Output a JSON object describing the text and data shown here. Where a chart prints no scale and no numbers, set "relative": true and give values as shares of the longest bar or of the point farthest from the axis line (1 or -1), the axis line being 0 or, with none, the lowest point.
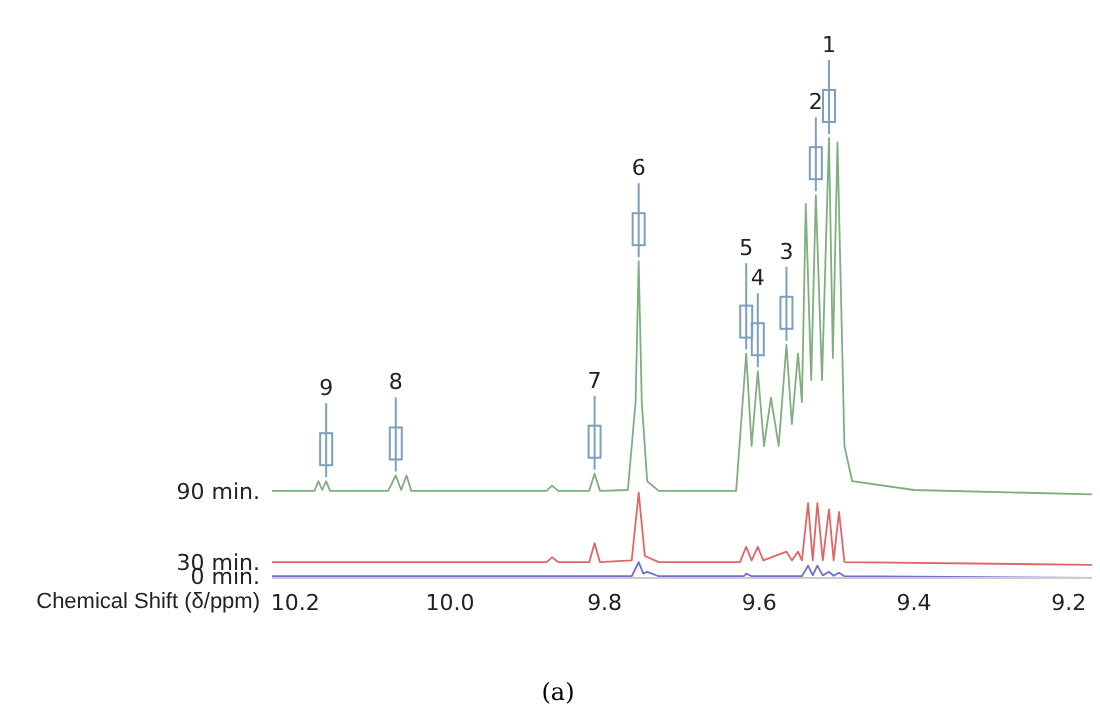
{
  "chart_data": {
    "type": "line",
    "relative": true,
    "xlabel": "Chemical Shift (δ/ppm)",
    "xlim": [
      10.23,
      9.17
    ],
    "xticks": [
      10.2,
      {
        "value": 10,
        "label": "10.0"
      },
      9.8,
      9.6,
      9.4,
      9.2
    ],
    "grid": false,
    "legend": false,
    "marker": "none",
    "line_style": "solid",
    "series": [
      {
        "name": "90 min.",
        "color": "#7fae7f",
        "x": [
          10.23,
          10.175,
          10.17,
          10.165,
          10.16,
          10.155,
          10.08,
          10.07,
          10.063,
          10.056,
          10.05,
          9.875,
          9.868,
          9.86,
          9.82,
          9.813,
          9.806,
          9.77,
          9.76,
          9.756,
          9.752,
          9.745,
          9.73,
          9.63,
          9.617,
          9.61,
          9.602,
          9.594,
          9.585,
          9.575,
          9.565,
          9.558,
          9.55,
          9.545,
          9.54,
          9.533,
          9.527,
          9.519,
          9.51,
          9.505,
          9.499,
          9.49,
          9.48,
          9.4,
          9.17
        ],
        "values": [
          0.198,
          0.198,
          0.22,
          0.2,
          0.22,
          0.198,
          0.198,
          0.233,
          0.2,
          0.233,
          0.198,
          0.198,
          0.21,
          0.198,
          0.198,
          0.237,
          0.198,
          0.2,
          0.4,
          0.72,
          0.4,
          0.22,
          0.198,
          0.198,
          0.51,
          0.3,
          0.47,
          0.3,
          0.41,
          0.3,
          0.53,
          0.35,
          0.51,
          0.4,
          0.85,
          0.45,
          0.87,
          0.45,
          1.0,
          0.5,
          0.99,
          0.3,
          0.22,
          0.2,
          0.19
        ]
      },
      {
        "name": "30 min.",
        "color": "#e06666",
        "x": [
          10.23,
          9.875,
          9.868,
          9.86,
          9.82,
          9.813,
          9.806,
          9.765,
          9.756,
          9.748,
          9.73,
          9.625,
          9.617,
          9.61,
          9.602,
          9.595,
          9.565,
          9.558,
          9.55,
          9.545,
          9.537,
          9.531,
          9.525,
          9.518,
          9.51,
          9.504,
          9.497,
          9.49,
          9.17
        ],
        "values": [
          0.036,
          0.036,
          0.047,
          0.036,
          0.036,
          0.079,
          0.036,
          0.04,
          0.194,
          0.05,
          0.036,
          0.036,
          0.071,
          0.04,
          0.071,
          0.04,
          0.06,
          0.04,
          0.06,
          0.04,
          0.17,
          0.04,
          0.17,
          0.04,
          0.156,
          0.04,
          0.15,
          0.036,
          0.03
        ]
      },
      {
        "name": "0 min.",
        "color": "#6f6fd6",
        "x": [
          10.23,
          9.765,
          9.756,
          9.75,
          9.745,
          9.73,
          9.62,
          9.617,
          9.61,
          9.545,
          9.537,
          9.531,
          9.525,
          9.518,
          9.51,
          9.504,
          9.497,
          9.49,
          9.17
        ],
        "values": [
          0.004,
          0.004,
          0.036,
          0.01,
          0.014,
          0.004,
          0.004,
          0.01,
          0.004,
          0.004,
          0.028,
          0.006,
          0.028,
          0.006,
          0.014,
          0.005,
          0.012,
          0.004,
          0
        ]
      }
    ],
    "annotations": [
      {
        "text": "1",
        "x": 9.51,
        "y": 1.0
      },
      {
        "text": "2",
        "x": 9.527,
        "y": 0.87
      },
      {
        "text": "3",
        "x": 9.565,
        "y": 0.53
      },
      {
        "text": "4",
        "x": 9.602,
        "y": 0.47
      },
      {
        "text": "5",
        "x": 9.617,
        "y": 0.51
      },
      {
        "text": "6",
        "x": 9.756,
        "y": 0.72
      },
      {
        "text": "7",
        "x": 9.813,
        "y": 0.237
      },
      {
        "text": "8",
        "x": 10.07,
        "y": 0.233
      },
      {
        "text": "9",
        "x": 10.16,
        "y": 0.22
      },
      "(a)"
    ]
  }
}
